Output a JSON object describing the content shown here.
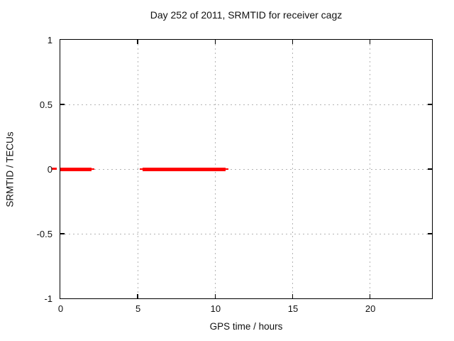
{
  "chart_data": {
    "type": "line",
    "title": "Day 252 of 2011, SRMTID for receiver cagz",
    "xlabel": "GPS time / hours",
    "ylabel": "SRMTID / TECUs",
    "xlim": [
      0,
      24
    ],
    "ylim": [
      -1,
      1
    ],
    "x_ticks": [
      0,
      5,
      10,
      15,
      20
    ],
    "y_ticks": [
      1,
      0.5,
      0,
      -0.5,
      -1
    ],
    "grid": true,
    "legend": "none",
    "series": [
      {
        "name": "SRMTID",
        "color": "#ff0000",
        "style": "thick horizontal segments with thin end caps at y=0",
        "segments": [
          {
            "y": 0,
            "x_start": 0,
            "x_end": 2.0
          },
          {
            "y": 0,
            "x_start": 5.3,
            "x_end": 10.65
          }
        ]
      }
    ],
    "colors": {
      "axis": "#000000",
      "grid": "#b4b4b4",
      "text": "#111111",
      "background": "#ffffff"
    }
  }
}
